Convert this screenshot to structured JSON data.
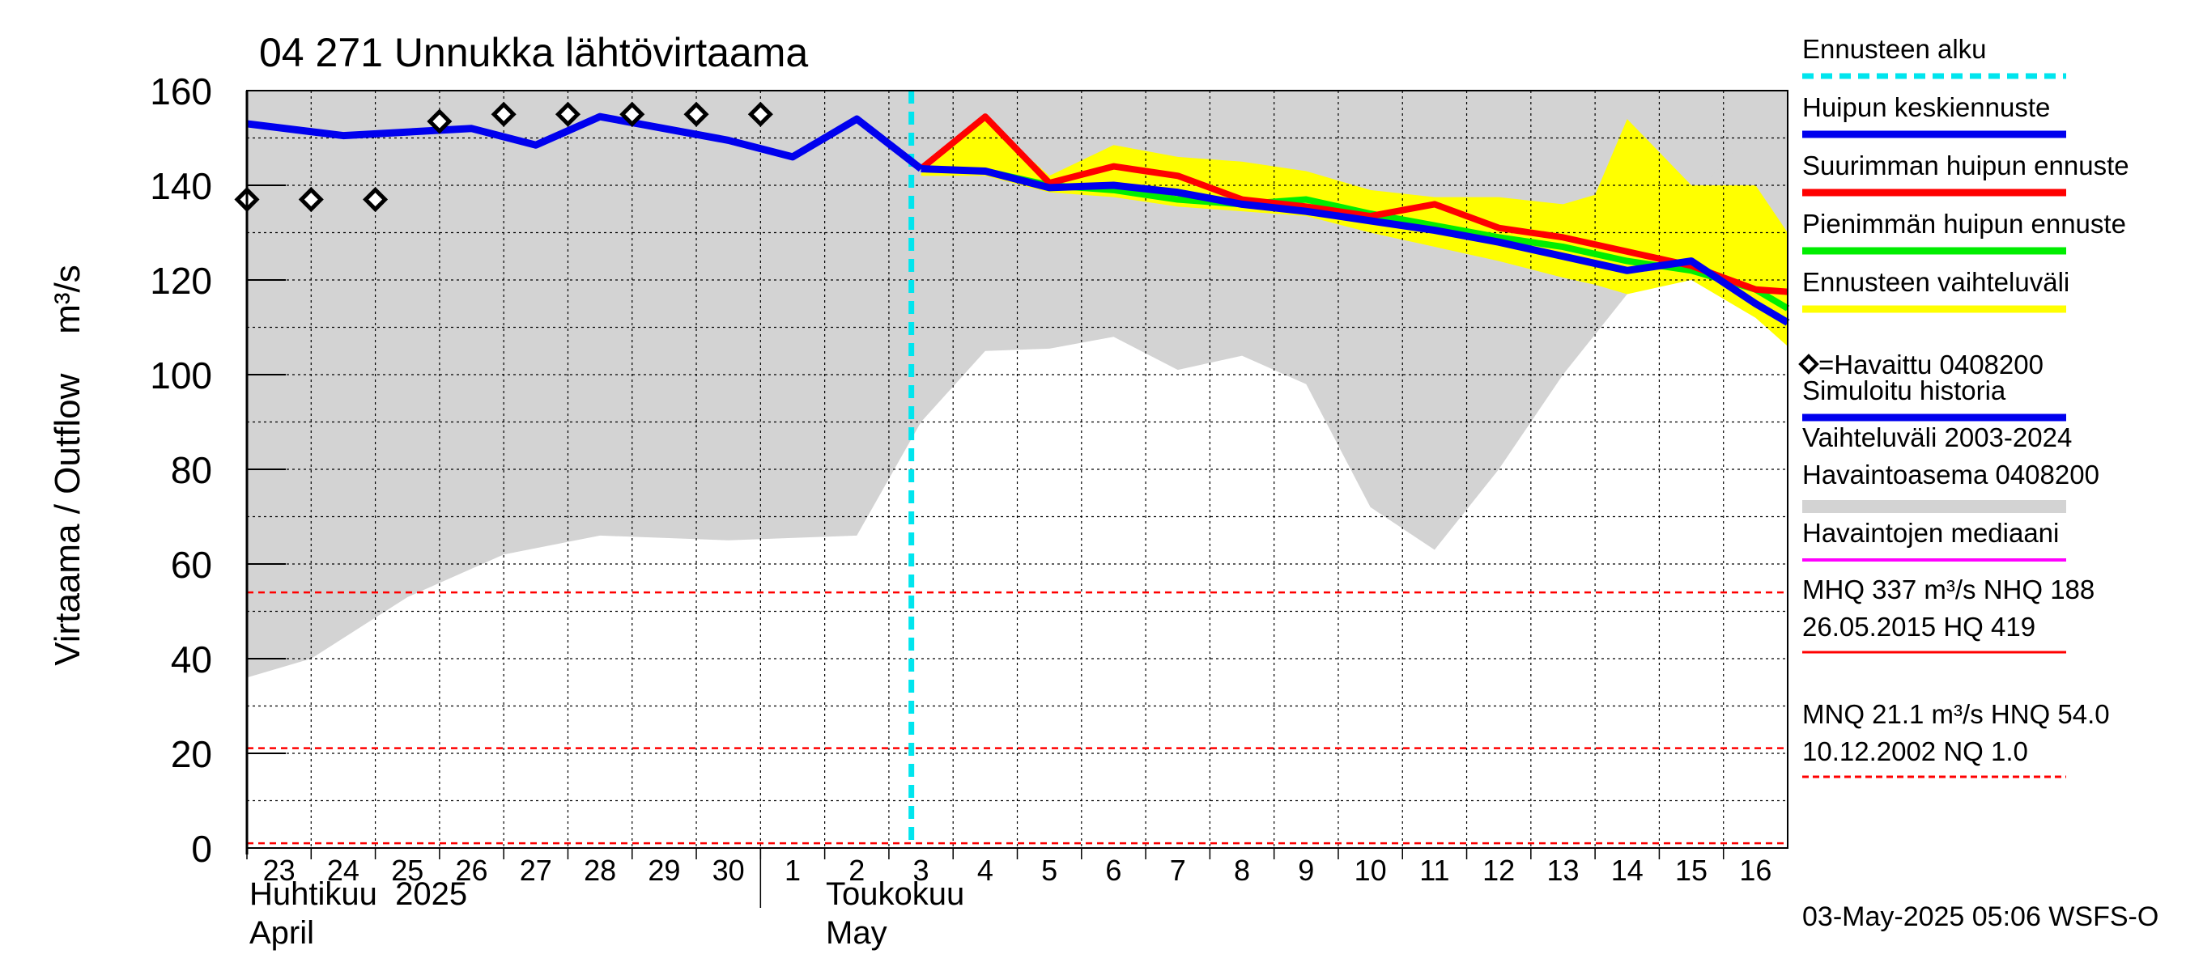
{
  "chart_data": {
    "type": "line",
    "title": "04 271 Unnukka lähtövirtaama",
    "ylabel": "Virtaama / Outflow    m³/s",
    "ylim": [
      0,
      160
    ],
    "yticks": [
      0,
      20,
      40,
      60,
      80,
      100,
      120,
      140,
      160
    ],
    "xlim": [
      -0.5,
      23.5
    ],
    "day_ticks": [
      {
        "pos": 0,
        "label": "23"
      },
      {
        "pos": 1,
        "label": "24"
      },
      {
        "pos": 2,
        "label": "25"
      },
      {
        "pos": 3,
        "label": "26"
      },
      {
        "pos": 4,
        "label": "27"
      },
      {
        "pos": 5,
        "label": "28"
      },
      {
        "pos": 6,
        "label": "29"
      },
      {
        "pos": 7,
        "label": "30"
      },
      {
        "pos": 8,
        "label": "1"
      },
      {
        "pos": 9,
        "label": "2"
      },
      {
        "pos": 10,
        "label": "3"
      },
      {
        "pos": 11,
        "label": "4"
      },
      {
        "pos": 12,
        "label": "5"
      },
      {
        "pos": 13,
        "label": "6"
      },
      {
        "pos": 14,
        "label": "7"
      },
      {
        "pos": 15,
        "label": "8"
      },
      {
        "pos": 16,
        "label": "9"
      },
      {
        "pos": 17,
        "label": "10"
      },
      {
        "pos": 18,
        "label": "11"
      },
      {
        "pos": 19,
        "label": "12"
      },
      {
        "pos": 20,
        "label": "13"
      },
      {
        "pos": 21,
        "label": "14"
      },
      {
        "pos": 22,
        "label": "15"
      },
      {
        "pos": 23,
        "label": "16"
      }
    ],
    "month_labels": {
      "april_fi": "Huhtikuu  2025",
      "april_en": "April",
      "may_fi": "Toukokuu",
      "may_en": "May"
    },
    "month_boundary": 7.5,
    "forecast_start": 9.85,
    "history_band": {
      "x": [
        -0.5,
        0.5,
        2.0,
        3.5,
        5.0,
        7.0,
        9.0,
        10.0,
        11.0,
        12.0,
        13.0,
        14.0,
        15.0,
        16.0,
        17.0,
        18.0,
        19.0,
        20.0,
        21.0,
        22.0,
        23.0,
        23.5
      ],
      "lower": [
        36,
        40,
        53,
        62,
        66,
        65,
        66,
        90,
        105,
        105.5,
        108,
        101,
        104,
        98,
        72,
        63,
        80,
        100,
        117,
        125,
        120,
        118
      ],
      "upper": [
        160,
        160,
        160,
        160,
        160,
        160,
        160,
        160,
        160,
        160,
        160,
        160,
        160,
        160,
        160,
        160,
        160,
        160,
        160,
        160,
        160,
        160
      ],
      "extra_peak": {
        "x": [
          21.6,
          22.0,
          22.6,
          23.5
        ],
        "y": [
          131,
          143,
          148,
          152
        ]
      }
    },
    "forecast_band": {
      "x": [
        10.0,
        11.0,
        12.0,
        13.0,
        14.0,
        15.0,
        16.0,
        17.0,
        18.0,
        19.0,
        20.0,
        20.5,
        21.0,
        22.0,
        23.0,
        23.5
      ],
      "lower": [
        142,
        142,
        138.5,
        137.5,
        135.5,
        134.5,
        133.5,
        130,
        127,
        124,
        120.5,
        119,
        117,
        120,
        112,
        106
      ],
      "upper": [
        142.5,
        154,
        142,
        148.5,
        146,
        145,
        143,
        139,
        137.5,
        137.5,
        136,
        138,
        154,
        140,
        140,
        130
      ]
    },
    "series": [
      {
        "name": "Simuloitu historia",
        "color": "#0000ee",
        "x": [
          -0.5,
          1.0,
          3.0,
          4.0,
          5.0,
          6.0,
          7.0,
          8.0,
          9.0,
          10.0
        ],
        "y": [
          153,
          150.5,
          152,
          148.5,
          154.5,
          152,
          149.5,
          146,
          154,
          143.5
        ]
      },
      {
        "name": "Suurimman huipun ennuste",
        "color": "#ff0000",
        "x": [
          10.0,
          11.0,
          12.0,
          13.0,
          14.0,
          15.0,
          16.0,
          17.0,
          18.0,
          19.0,
          20.0,
          21.0,
          22.0,
          23.0,
          23.5
        ],
        "y": [
          143.5,
          154.5,
          140.5,
          144,
          142,
          137,
          135.5,
          133.5,
          136,
          131,
          129,
          126,
          123,
          118,
          117.5
        ]
      },
      {
        "name": "Pienimmän huipun ennuste",
        "color": "#00ee00",
        "x": [
          10.0,
          11.0,
          12.0,
          13.0,
          14.0,
          15.0,
          16.0,
          17.0,
          18.0,
          19.0,
          20.0,
          21.0,
          22.0,
          23.0,
          23.5
        ],
        "y": [
          143.5,
          143,
          140,
          139,
          137,
          136,
          137,
          134,
          131.5,
          129,
          127,
          124,
          122,
          118,
          114
        ]
      },
      {
        "name": "Huipun keskiennuste",
        "color": "#0000ee",
        "x": [
          10.0,
          11.0,
          12.0,
          13.0,
          14.0,
          15.0,
          16.0,
          17.0,
          18.0,
          19.0,
          20.0,
          21.0,
          22.0,
          23.0,
          23.5
        ],
        "y": [
          143.5,
          143,
          139.5,
          140,
          138.5,
          136,
          134.5,
          132.5,
          130.5,
          128,
          125,
          122,
          124,
          115,
          111
        ]
      }
    ],
    "observed": {
      "name": "Havaittu 0408200",
      "x": [
        -0.5,
        0.5,
        1.5,
        2.5,
        3.5,
        4.5,
        5.5,
        6.5,
        7.5
      ],
      "y": [
        137,
        137,
        137,
        153.5,
        155,
        155,
        155,
        155,
        155
      ]
    },
    "reference_lines": [
      {
        "name": "HNQ",
        "value": 54
      },
      {
        "name": "MNQ",
        "value": 21.1
      },
      {
        "name": "NQ",
        "value": 1
      }
    ],
    "legend": [
      {
        "label": "Ennusteen alku",
        "color": "#00e5ee",
        "style": "dashed"
      },
      {
        "label": "Huipun keskiennuste",
        "color": "#0000ee",
        "style": "solid"
      },
      {
        "label": "Suurimman huipun ennuste",
        "color": "#ff0000",
        "style": "solid"
      },
      {
        "label": "Pienimmän huipun ennuste",
        "color": "#00ee00",
        "style": "solid"
      },
      {
        "label": "Ennusteen vaihteluväli",
        "color": "#ffff00",
        "style": "solid"
      },
      {
        "label": "=Havaittu 0408200",
        "color": "#000000",
        "style": "marker"
      },
      {
        "label": "Simuloitu historia",
        "color": "#0000ee",
        "style": "solid"
      },
      {
        "label": "Vaihteluväli 2003-2024",
        "label2": " Havaintoasema 0408200",
        "color": "#d3d3d3",
        "style": "band"
      },
      {
        "label": "Havaintojen mediaani",
        "color": "#ff00ff",
        "style": "solid"
      },
      {
        "label": "MHQ  337 m³/s NHQ  188",
        "label2": "26.05.2015 HQ  419",
        "color": "#ff0000",
        "style": "thin"
      },
      {
        "label": "MNQ 21.1 m³/s HNQ 54.0",
        "label2": "10.12.2002 NQ  1.0",
        "color": "#ff0000",
        "style": "thin-dashed"
      }
    ],
    "footer": "03-May-2025 05:06 WSFS-O"
  },
  "colors": {
    "history_band": "#d3d3d3",
    "forecast_band": "#ffff00",
    "forecast_start": "#00e5ee",
    "reference": "#ff0000",
    "grid": "#000000"
  }
}
